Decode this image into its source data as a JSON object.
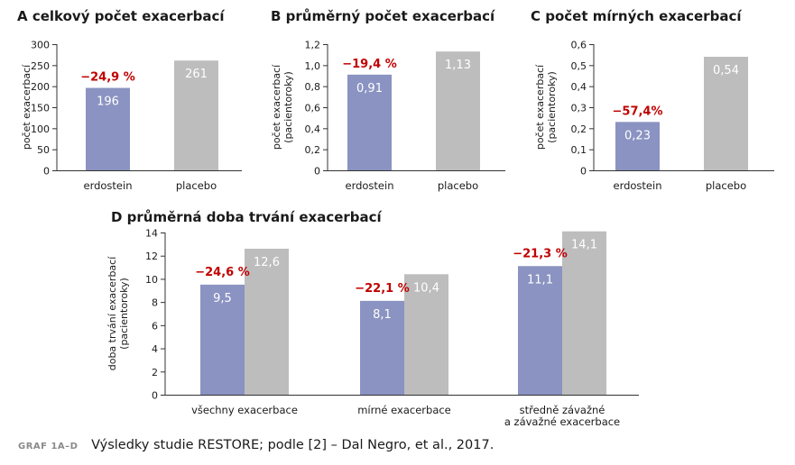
{
  "colors": {
    "erdostein": "#8a93c1",
    "placebo": "#bdbdbd",
    "reduction": "#c00000",
    "axis": "#333333"
  },
  "chart_data": [
    {
      "id": "A",
      "type": "bar",
      "title": "A  celkový počet exacerbací",
      "ylabel": [
        "počet exacerbací"
      ],
      "categories": [
        "erdostein",
        "placebo"
      ],
      "values": [
        196,
        261
      ],
      "value_labels": [
        "196",
        "261"
      ],
      "reduction": "−24,9 %",
      "ylim": [
        0,
        300
      ],
      "yticks": [
        0,
        50,
        100,
        150,
        200,
        250,
        300
      ],
      "ytick_labels": [
        "0",
        "50",
        "100",
        "150",
        "200",
        "250",
        "300"
      ],
      "grid": false
    },
    {
      "id": "B",
      "type": "bar",
      "title": "B  průměrný počet exacerbací",
      "ylabel": [
        "počet exacerbací",
        "(pacientoroky)"
      ],
      "categories": [
        "erdostein",
        "placebo"
      ],
      "values": [
        0.91,
        1.13
      ],
      "value_labels": [
        "0,91",
        "1,13"
      ],
      "reduction": "−19,4 %",
      "ylim": [
        0,
        1.2
      ],
      "yticks": [
        0,
        0.2,
        0.4,
        0.6,
        0.8,
        1.0,
        1.2
      ],
      "ytick_labels": [
        "0",
        "0,2",
        "0,4",
        "0,6",
        "0,8",
        "1,0",
        "1,2"
      ],
      "grid": false
    },
    {
      "id": "C",
      "type": "bar",
      "title": "C  počet mírných exacerbací",
      "ylabel": [
        "počet exacerbací",
        "(pacientoroky)"
      ],
      "categories": [
        "erdostein",
        "placebo"
      ],
      "values": [
        0.23,
        0.54
      ],
      "value_labels": [
        "0,23",
        "0,54"
      ],
      "reduction": "−57,4%",
      "ylim": [
        0,
        0.6
      ],
      "yticks": [
        0,
        0.1,
        0.2,
        0.3,
        0.4,
        0.5,
        0.6
      ],
      "ytick_labels": [
        "0",
        "0,1",
        "0,2",
        "0,3",
        "0,4",
        "0,5",
        "0,6"
      ],
      "grid": false
    },
    {
      "id": "D",
      "type": "bar",
      "title": "D  průměrná doba trvání exacerbací",
      "ylabel": [
        "doba trvání exacerbací",
        "(pacientoroky)"
      ],
      "categories": [
        [
          "všechny exacerbace"
        ],
        [
          "mírné exacerbace"
        ],
        [
          "středně závažné",
          "a závažné exacerbace"
        ]
      ],
      "series": [
        {
          "values": [
            9.5,
            8.1,
            11.1
          ],
          "value_labels": [
            "9,5",
            "8,1",
            "11,1"
          ]
        },
        {
          "values": [
            12.6,
            10.4,
            14.1
          ],
          "value_labels": [
            "12,6",
            "10,4",
            "14,1"
          ]
        }
      ],
      "reductions": [
        "−24,6 %",
        "−22,1 %",
        "−21,3 %"
      ],
      "ylim": [
        0,
        14
      ],
      "yticks": [
        0,
        2,
        4,
        6,
        8,
        10,
        12,
        14
      ],
      "ytick_labels": [
        "0",
        "2",
        "4",
        "6",
        "8",
        "10",
        "12",
        "14"
      ],
      "grid": false
    }
  ],
  "caption": {
    "tag": "GRAF 1A–D",
    "text": "Výsledky studie RESTORE; podle [2] – Dal Negro, et al., 2017."
  }
}
